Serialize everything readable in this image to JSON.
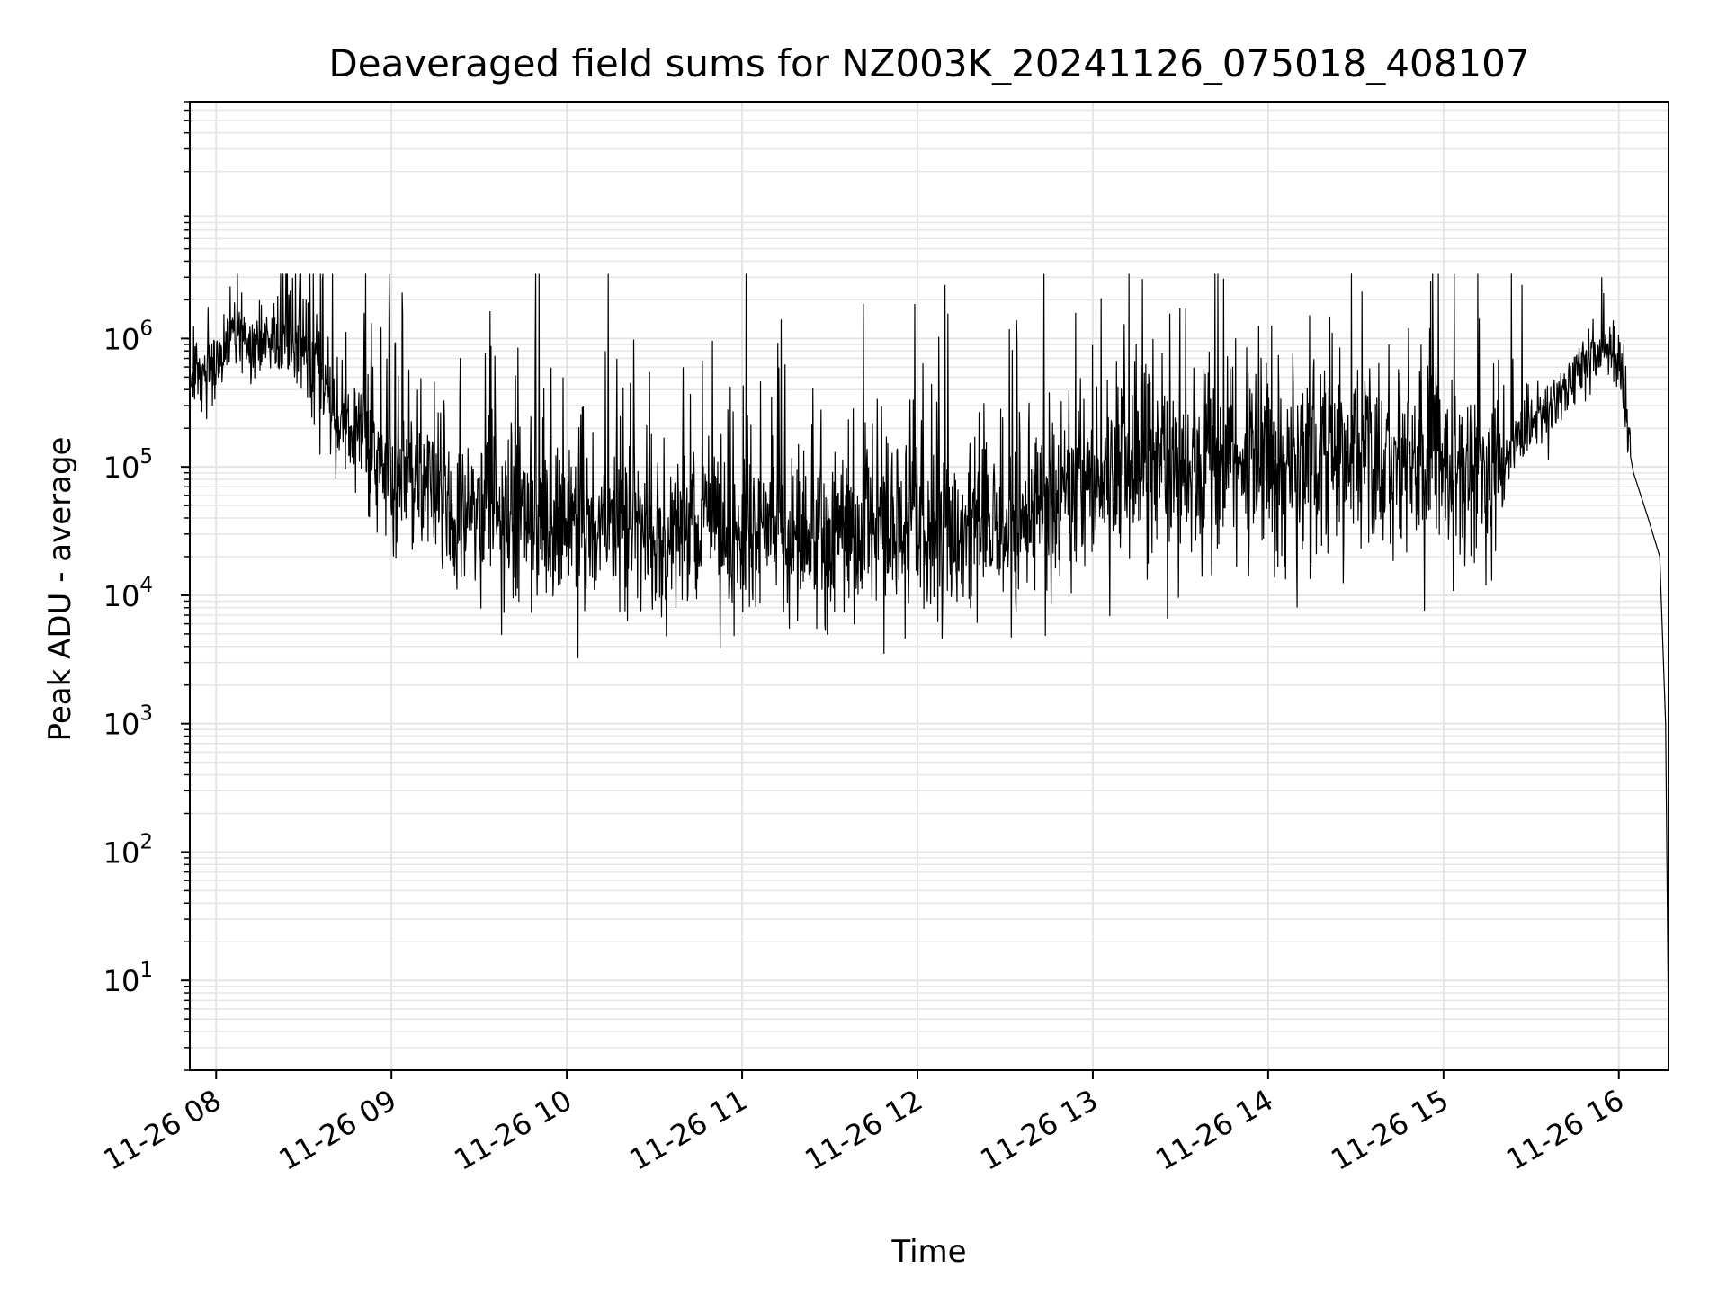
{
  "chart_data": {
    "type": "line",
    "title": "Deaveraged field sums for NZ003K_20241126_075018_408107",
    "xlabel": "Time",
    "ylabel": "Peak ADU - average",
    "y_scale": "log",
    "ylim": [
      2,
      70000000
    ],
    "xlim": [
      "2024-11-26 07:51",
      "2024-11-26 16:17"
    ],
    "grid": "major and minor",
    "line_color": "#000000",
    "grid_color": "#e5e5e5",
    "x_ticks": [
      "2024-11-26 08:00",
      "2024-11-26 09:00",
      "2024-11-26 10:00",
      "2024-11-26 11:00",
      "2024-11-26 12:00",
      "2024-11-26 13:00",
      "2024-11-26 14:00",
      "2024-11-26 15:00",
      "2024-11-26 16:00"
    ],
    "x_tick_labels": [
      "11-26 08",
      "11-26 09",
      "11-26 10",
      "11-26 11",
      "11-26 12",
      "11-26 13",
      "11-26 14",
      "11-26 15",
      "11-26 16"
    ],
    "y_ticks": [
      10,
      100,
      1000,
      10000,
      100000,
      1000000
    ],
    "y_tick_labels": [
      {
        "base": "10",
        "exp": "1"
      },
      {
        "base": "10",
        "exp": "2"
      },
      {
        "base": "10",
        "exp": "3"
      },
      {
        "base": "10",
        "exp": "4"
      },
      {
        "base": "10",
        "exp": "5"
      },
      {
        "base": "10",
        "exp": "6"
      }
    ],
    "series": [
      {
        "x": [
          "2024-11-26 07:51",
          "2024-11-26 08:00",
          "2024-11-26 08:06",
          "2024-11-26 08:10",
          "2024-11-26 08:20",
          "2024-11-26 08:30",
          "2024-11-26 08:40",
          "2024-11-26 08:50",
          "2024-11-26 09:00",
          "2024-11-26 09:15",
          "2024-11-26 09:30",
          "2024-11-26 09:45",
          "2024-11-26 10:00",
          "2024-11-26 10:30",
          "2024-11-26 11:00",
          "2024-11-26 11:30",
          "2024-11-26 12:00",
          "2024-11-26 12:30",
          "2024-11-26 13:00",
          "2024-11-26 13:30",
          "2024-11-26 14:00",
          "2024-11-26 14:30",
          "2024-11-26 15:00",
          "2024-11-26 15:15",
          "2024-11-26 15:30",
          "2024-11-26 15:45",
          "2024-11-26 15:53",
          "2024-11-26 16:00",
          "2024-11-26 16:05",
          "2024-11-26 16:10",
          "2024-11-26 16:14",
          "2024-11-26 16:16",
          "2024-11-26 16:17"
        ],
        "y": [
          500000,
          600000,
          1200000,
          900000,
          1000000,
          900000,
          300000,
          150000,
          100000,
          60000,
          45000,
          40000,
          35000,
          32000,
          30000,
          30000,
          30000,
          35000,
          80000,
          100000,
          100000,
          100000,
          90000,
          100000,
          200000,
          500000,
          800000,
          700000,
          90000,
          40000,
          20000,
          1000,
          4
        ]
      }
    ]
  }
}
